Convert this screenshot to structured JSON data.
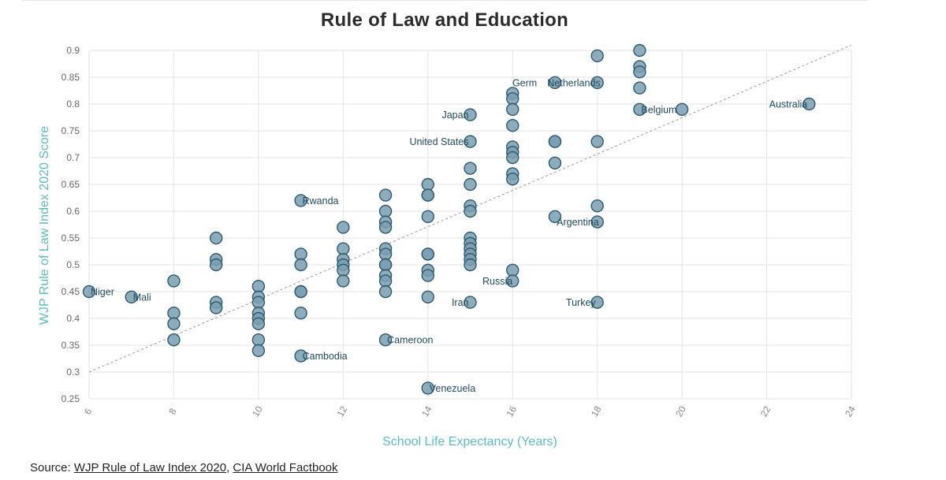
{
  "chart_data": {
    "type": "scatter",
    "title": "Rule of Law and Education",
    "xlabel": "School Life Expectancy (Years)",
    "ylabel": "WJP Rule of Law Index 2020 Score",
    "xlim": [
      6,
      24
    ],
    "ylim": [
      0.25,
      0.9
    ],
    "xticks": [
      6,
      8,
      10,
      12,
      14,
      16,
      18,
      20,
      22,
      24
    ],
    "yticks": [
      0.25,
      0.3,
      0.35,
      0.4,
      0.45,
      0.5,
      0.55,
      0.6,
      0.65,
      0.7,
      0.75,
      0.8,
      0.85,
      0.9
    ],
    "trendline": {
      "x": [
        6,
        24
      ],
      "y": [
        0.3,
        0.91
      ]
    },
    "colors": {
      "point_fill": "#7a9fb0",
      "point_stroke": "#2b5a70",
      "label": "#1f4a5e",
      "axis_label": "#5bbcc0",
      "trend": "#999999",
      "grid": "#e3e3e3"
    },
    "points": [
      {
        "x": 6,
        "y": 0.45,
        "label": "Niger"
      },
      {
        "x": 7,
        "y": 0.44,
        "label": "Mali"
      },
      {
        "x": 8,
        "y": 0.47,
        "label": ""
      },
      {
        "x": 8,
        "y": 0.41,
        "label": ""
      },
      {
        "x": 8,
        "y": 0.39,
        "label": ""
      },
      {
        "x": 8,
        "y": 0.36,
        "label": ""
      },
      {
        "x": 9,
        "y": 0.55,
        "label": ""
      },
      {
        "x": 9,
        "y": 0.51,
        "label": ""
      },
      {
        "x": 9,
        "y": 0.5,
        "label": ""
      },
      {
        "x": 9,
        "y": 0.43,
        "label": ""
      },
      {
        "x": 9,
        "y": 0.42,
        "label": ""
      },
      {
        "x": 10,
        "y": 0.46,
        "label": ""
      },
      {
        "x": 10,
        "y": 0.44,
        "label": ""
      },
      {
        "x": 10,
        "y": 0.43,
        "label": ""
      },
      {
        "x": 10,
        "y": 0.41,
        "label": ""
      },
      {
        "x": 10,
        "y": 0.4,
        "label": ""
      },
      {
        "x": 10,
        "y": 0.39,
        "label": ""
      },
      {
        "x": 10,
        "y": 0.36,
        "label": ""
      },
      {
        "x": 10,
        "y": 0.34,
        "label": ""
      },
      {
        "x": 11,
        "y": 0.62,
        "label": "Rwanda"
      },
      {
        "x": 11,
        "y": 0.52,
        "label": ""
      },
      {
        "x": 11,
        "y": 0.5,
        "label": ""
      },
      {
        "x": 11,
        "y": 0.45,
        "label": ""
      },
      {
        "x": 11,
        "y": 0.45,
        "label": ""
      },
      {
        "x": 11,
        "y": 0.41,
        "label": ""
      },
      {
        "x": 11,
        "y": 0.33,
        "label": "Cambodia"
      },
      {
        "x": 12,
        "y": 0.57,
        "label": ""
      },
      {
        "x": 12,
        "y": 0.53,
        "label": ""
      },
      {
        "x": 12,
        "y": 0.51,
        "label": ""
      },
      {
        "x": 12,
        "y": 0.5,
        "label": ""
      },
      {
        "x": 12,
        "y": 0.49,
        "label": ""
      },
      {
        "x": 12,
        "y": 0.47,
        "label": ""
      },
      {
        "x": 13,
        "y": 0.63,
        "label": ""
      },
      {
        "x": 13,
        "y": 0.6,
        "label": ""
      },
      {
        "x": 13,
        "y": 0.58,
        "label": ""
      },
      {
        "x": 13,
        "y": 0.57,
        "label": ""
      },
      {
        "x": 13,
        "y": 0.53,
        "label": ""
      },
      {
        "x": 13,
        "y": 0.52,
        "label": ""
      },
      {
        "x": 13,
        "y": 0.5,
        "label": ""
      },
      {
        "x": 13,
        "y": 0.5,
        "label": ""
      },
      {
        "x": 13,
        "y": 0.48,
        "label": ""
      },
      {
        "x": 13,
        "y": 0.47,
        "label": ""
      },
      {
        "x": 13,
        "y": 0.45,
        "label": ""
      },
      {
        "x": 13,
        "y": 0.36,
        "label": "Cameroon"
      },
      {
        "x": 14,
        "y": 0.65,
        "label": ""
      },
      {
        "x": 14,
        "y": 0.63,
        "label": ""
      },
      {
        "x": 14,
        "y": 0.63,
        "label": ""
      },
      {
        "x": 14,
        "y": 0.59,
        "label": ""
      },
      {
        "x": 14,
        "y": 0.52,
        "label": ""
      },
      {
        "x": 14,
        "y": 0.52,
        "label": ""
      },
      {
        "x": 14,
        "y": 0.49,
        "label": ""
      },
      {
        "x": 14,
        "y": 0.48,
        "label": ""
      },
      {
        "x": 14,
        "y": 0.44,
        "label": ""
      },
      {
        "x": 14,
        "y": 0.27,
        "label": "Venezuela"
      },
      {
        "x": 15,
        "y": 0.78,
        "label": "Japan"
      },
      {
        "x": 15,
        "y": 0.73,
        "label": "United States"
      },
      {
        "x": 15,
        "y": 0.68,
        "label": ""
      },
      {
        "x": 15,
        "y": 0.65,
        "label": ""
      },
      {
        "x": 15,
        "y": 0.61,
        "label": ""
      },
      {
        "x": 15,
        "y": 0.6,
        "label": ""
      },
      {
        "x": 15,
        "y": 0.55,
        "label": ""
      },
      {
        "x": 15,
        "y": 0.54,
        "label": ""
      },
      {
        "x": 15,
        "y": 0.53,
        "label": ""
      },
      {
        "x": 15,
        "y": 0.52,
        "label": ""
      },
      {
        "x": 15,
        "y": 0.51,
        "label": ""
      },
      {
        "x": 15,
        "y": 0.5,
        "label": ""
      },
      {
        "x": 15,
        "y": 0.43,
        "label": "Iran"
      },
      {
        "x": 16,
        "y": 0.82,
        "label": ""
      },
      {
        "x": 16,
        "y": 0.81,
        "label": ""
      },
      {
        "x": 16,
        "y": 0.79,
        "label": ""
      },
      {
        "x": 16,
        "y": 0.76,
        "label": ""
      },
      {
        "x": 16,
        "y": 0.72,
        "label": ""
      },
      {
        "x": 16,
        "y": 0.71,
        "label": ""
      },
      {
        "x": 16,
        "y": 0.7,
        "label": ""
      },
      {
        "x": 16,
        "y": 0.67,
        "label": ""
      },
      {
        "x": 16,
        "y": 0.66,
        "label": ""
      },
      {
        "x": 16,
        "y": 0.49,
        "label": ""
      },
      {
        "x": 16,
        "y": 0.47,
        "label": "Russia"
      },
      {
        "x": 17,
        "y": 0.84,
        "label": "Germany"
      },
      {
        "x": 17,
        "y": 0.73,
        "label": ""
      },
      {
        "x": 17,
        "y": 0.73,
        "label": ""
      },
      {
        "x": 17,
        "y": 0.69,
        "label": ""
      },
      {
        "x": 17,
        "y": 0.59,
        "label": ""
      },
      {
        "x": 18,
        "y": 0.89,
        "label": ""
      },
      {
        "x": 18,
        "y": 0.84,
        "label": "Netherlands"
      },
      {
        "x": 18,
        "y": 0.73,
        "label": ""
      },
      {
        "x": 18,
        "y": 0.61,
        "label": ""
      },
      {
        "x": 18,
        "y": 0.58,
        "label": "Argentina"
      },
      {
        "x": 18,
        "y": 0.43,
        "label": "Turkey"
      },
      {
        "x": 19,
        "y": 0.9,
        "label": ""
      },
      {
        "x": 19,
        "y": 0.87,
        "label": ""
      },
      {
        "x": 19,
        "y": 0.86,
        "label": ""
      },
      {
        "x": 19,
        "y": 0.83,
        "label": ""
      },
      {
        "x": 19,
        "y": 0.79,
        "label": "Belgium"
      },
      {
        "x": 20,
        "y": 0.79,
        "label": ""
      },
      {
        "x": 23,
        "y": 0.8,
        "label": "Australia"
      }
    ]
  },
  "source": {
    "prefix": "Source: ",
    "link1": "WJP Rule of Law Index 2020",
    "separator": ", ",
    "link2": "CIA World Factbook"
  }
}
